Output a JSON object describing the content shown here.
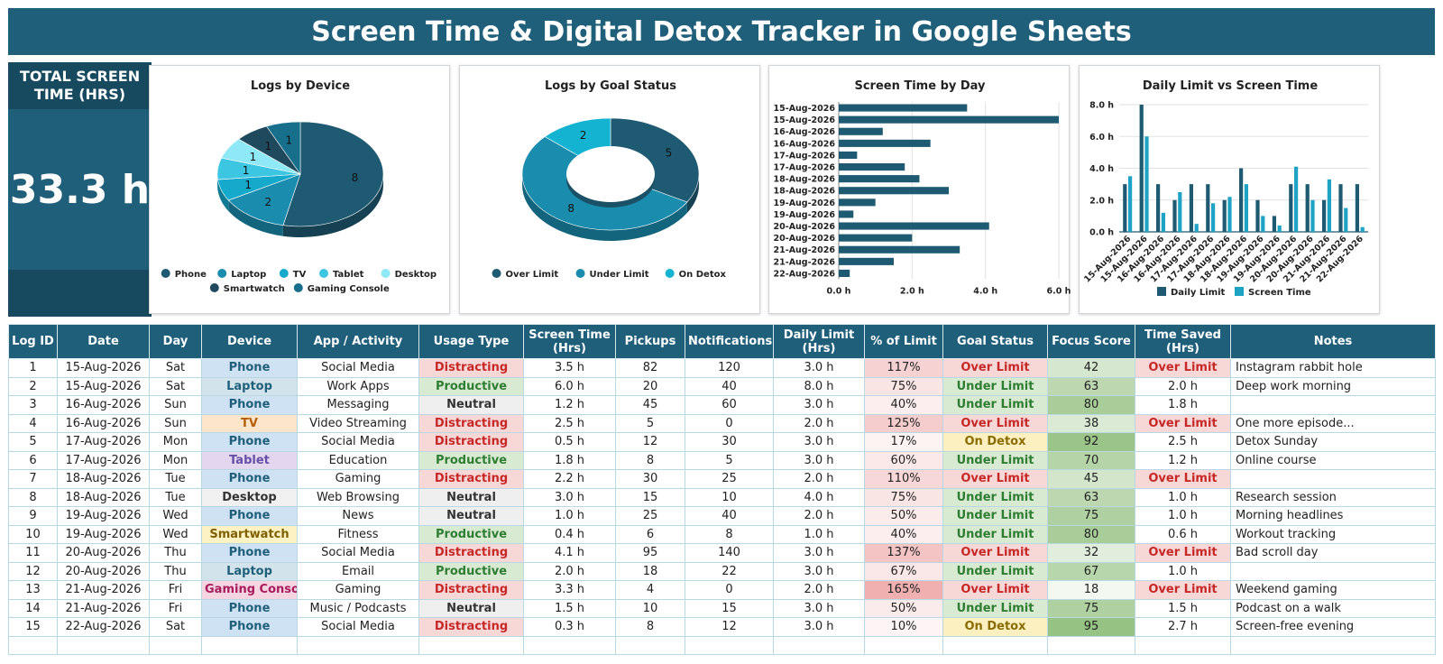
{
  "title": "Screen Time & Digital Detox Tracker in Google Sheets",
  "kpi": {
    "label": "TOTAL SCREEN TIME (HRS)",
    "value": "33.3 h"
  },
  "colors": {
    "header": "#1f5f7a",
    "dark": "#174a5f",
    "device": {
      "Phone": "#1e5a72",
      "Laptop": "#1a8cad",
      "TV": "#15a9cc",
      "Tablet": "#3cc6e2",
      "Desktop": "#8ee8f5",
      "Smartwatch": "#1f4a5e",
      "Gaming Console": "#176f8c"
    },
    "status": {
      "Over Limit": "#1e5a72",
      "Under Limit": "#1a8cad",
      "On Detox": "#15b3d2"
    },
    "daily_limit": "#1e5a72",
    "screen_time": "#1fa3c4"
  },
  "chart_data": [
    {
      "type": "pie",
      "title": "Logs by Device",
      "labels": [
        "Phone",
        "Laptop",
        "TV",
        "Tablet",
        "Desktop",
        "Smartwatch",
        "Gaming Console"
      ],
      "values": [
        8,
        2,
        1,
        1,
        1,
        1,
        1
      ],
      "legend": "bottom"
    },
    {
      "type": "pie",
      "title": "Logs by Goal Status",
      "labels": [
        "Over Limit",
        "Under Limit",
        "On Detox"
      ],
      "values": [
        5,
        8,
        2
      ],
      "legend": "bottom"
    },
    {
      "type": "bar",
      "title": "Screen Time by Day",
      "categories": [
        "15-Aug-2026",
        "15-Aug-2026",
        "16-Aug-2026",
        "16-Aug-2026",
        "17-Aug-2026",
        "17-Aug-2026",
        "18-Aug-2026",
        "18-Aug-2026",
        "19-Aug-2026",
        "19-Aug-2026",
        "20-Aug-2026",
        "20-Aug-2026",
        "21-Aug-2026",
        "21-Aug-2026",
        "22-Aug-2026"
      ],
      "values": [
        3.5,
        6.0,
        1.2,
        2.5,
        0.5,
        1.8,
        2.2,
        3.0,
        1.0,
        0.4,
        4.1,
        2.0,
        3.3,
        1.5,
        0.3
      ],
      "xlim": [
        0,
        6
      ],
      "xticks": [
        "0.0 h",
        "2.0 h",
        "4.0 h",
        "6.0 h"
      ],
      "grid": true
    },
    {
      "type": "bar",
      "title": "Daily Limit vs Screen Time",
      "categories": [
        "15-Aug-2026",
        "15-Aug-2026",
        "16-Aug-2026",
        "16-Aug-2026",
        "17-Aug-2026",
        "17-Aug-2026",
        "18-Aug-2026",
        "18-Aug-2026",
        "19-Aug-2026",
        "19-Aug-2026",
        "20-Aug-2026",
        "20-Aug-2026",
        "21-Aug-2026",
        "21-Aug-2026",
        "22-Aug-2026"
      ],
      "series": [
        {
          "name": "Daily Limit",
          "values": [
            3.0,
            8.0,
            3.0,
            2.0,
            3.0,
            3.0,
            2.0,
            4.0,
            2.0,
            1.0,
            3.0,
            3.0,
            2.0,
            3.0,
            3.0
          ]
        },
        {
          "name": "Screen Time",
          "values": [
            3.5,
            6.0,
            1.2,
            2.5,
            0.5,
            1.8,
            2.2,
            3.0,
            1.0,
            0.4,
            4.1,
            2.0,
            3.3,
            1.5,
            0.3
          ]
        }
      ],
      "ylim": [
        0,
        8
      ],
      "yticks": [
        "0.0 h",
        "2.0 h",
        "4.0 h",
        "6.0 h",
        "8.0 h"
      ],
      "legend": "bottom",
      "grid": true
    }
  ],
  "table": {
    "headers": [
      "Log ID",
      "Date",
      "Day",
      "Device",
      "App / Activity",
      "Usage Type",
      "Screen Time (Hrs)",
      "Pickups",
      "Notifications",
      "Daily Limit (Hrs)",
      "% of Limit",
      "Goal Status",
      "Focus Score",
      "Time Saved (Hrs)",
      "Notes"
    ],
    "rows": [
      [
        "1",
        "15-Aug-2026",
        "Sat",
        "Phone",
        "Social Media",
        "Distracting",
        "3.5 h",
        "82",
        "120",
        "3.0 h",
        "117%",
        "Over Limit",
        "42",
        "Over Limit",
        "Instagram rabbit hole"
      ],
      [
        "2",
        "15-Aug-2026",
        "Sat",
        "Laptop",
        "Work Apps",
        "Productive",
        "6.0 h",
        "20",
        "40",
        "8.0 h",
        "75%",
        "Under Limit",
        "63",
        "2.0 h",
        "Deep work morning"
      ],
      [
        "3",
        "16-Aug-2026",
        "Sun",
        "Phone",
        "Messaging",
        "Neutral",
        "1.2 h",
        "45",
        "60",
        "3.0 h",
        "40%",
        "Under Limit",
        "80",
        "1.8 h",
        ""
      ],
      [
        "4",
        "16-Aug-2026",
        "Sun",
        "TV",
        "Video Streaming",
        "Distracting",
        "2.5 h",
        "5",
        "0",
        "2.0 h",
        "125%",
        "Over Limit",
        "38",
        "Over Limit",
        "One more episode..."
      ],
      [
        "5",
        "17-Aug-2026",
        "Mon",
        "Phone",
        "Social Media",
        "Distracting",
        "0.5 h",
        "12",
        "30",
        "3.0 h",
        "17%",
        "On Detox",
        "92",
        "2.5 h",
        "Detox Sunday"
      ],
      [
        "6",
        "17-Aug-2026",
        "Mon",
        "Tablet",
        "Education",
        "Productive",
        "1.8 h",
        "8",
        "5",
        "3.0 h",
        "60%",
        "Under Limit",
        "70",
        "1.2 h",
        "Online course"
      ],
      [
        "7",
        "18-Aug-2026",
        "Tue",
        "Phone",
        "Gaming",
        "Distracting",
        "2.2 h",
        "30",
        "25",
        "2.0 h",
        "110%",
        "Over Limit",
        "45",
        "Over Limit",
        ""
      ],
      [
        "8",
        "18-Aug-2026",
        "Tue",
        "Desktop",
        "Web Browsing",
        "Neutral",
        "3.0 h",
        "15",
        "10",
        "4.0 h",
        "75%",
        "Under Limit",
        "63",
        "1.0 h",
        "Research session"
      ],
      [
        "9",
        "19-Aug-2026",
        "Wed",
        "Phone",
        "News",
        "Neutral",
        "1.0 h",
        "25",
        "40",
        "2.0 h",
        "50%",
        "Under Limit",
        "75",
        "1.0 h",
        "Morning headlines"
      ],
      [
        "10",
        "19-Aug-2026",
        "Wed",
        "Smartwatch",
        "Fitness",
        "Productive",
        "0.4 h",
        "6",
        "8",
        "1.0 h",
        "40%",
        "Under Limit",
        "80",
        "0.6 h",
        "Workout tracking"
      ],
      [
        "11",
        "20-Aug-2026",
        "Thu",
        "Phone",
        "Social Media",
        "Distracting",
        "4.1 h",
        "95",
        "140",
        "3.0 h",
        "137%",
        "Over Limit",
        "32",
        "Over Limit",
        "Bad scroll day"
      ],
      [
        "12",
        "20-Aug-2026",
        "Thu",
        "Laptop",
        "Email",
        "Productive",
        "2.0 h",
        "18",
        "22",
        "3.0 h",
        "67%",
        "Under Limit",
        "67",
        "1.0 h",
        ""
      ],
      [
        "13",
        "21-Aug-2026",
        "Fri",
        "Gaming Console",
        "Gaming",
        "Distracting",
        "3.3 h",
        "4",
        "0",
        "2.0 h",
        "165%",
        "Over Limit",
        "18",
        "Over Limit",
        "Weekend gaming"
      ],
      [
        "14",
        "21-Aug-2026",
        "Fri",
        "Phone",
        "Music / Podcasts",
        "Neutral",
        "1.5 h",
        "10",
        "15",
        "3.0 h",
        "50%",
        "Under Limit",
        "75",
        "1.5 h",
        "Podcast on a walk"
      ],
      [
        "15",
        "22-Aug-2026",
        "Sat",
        "Phone",
        "Social Media",
        "Distracting",
        "0.3 h",
        "8",
        "12",
        "3.0 h",
        "10%",
        "On Detox",
        "95",
        "2.7 h",
        "Screen-free evening"
      ]
    ]
  }
}
